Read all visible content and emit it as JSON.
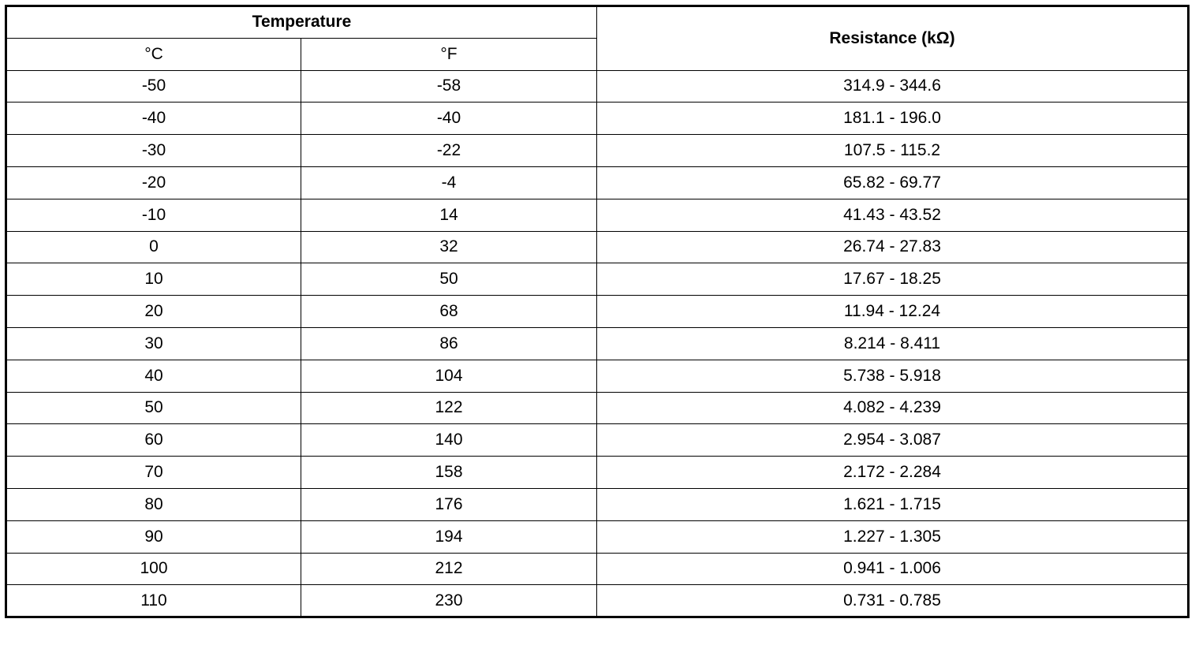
{
  "table": {
    "header": {
      "temperature": "Temperature",
      "celsius": "°C",
      "fahrenheit": "°F",
      "resistance": "Resistance (kΩ)"
    },
    "rows": [
      {
        "c": "-50",
        "f": "-58",
        "r": "314.9 - 344.6"
      },
      {
        "c": "-40",
        "f": "-40",
        "r": "181.1 - 196.0"
      },
      {
        "c": "-30",
        "f": "-22",
        "r": "107.5 - 115.2"
      },
      {
        "c": "-20",
        "f": "-4",
        "r": "65.82 - 69.77"
      },
      {
        "c": "-10",
        "f": "14",
        "r": "41.43 - 43.52"
      },
      {
        "c": "0",
        "f": "32",
        "r": "26.74 - 27.83"
      },
      {
        "c": "10",
        "f": "50",
        "r": "17.67 - 18.25"
      },
      {
        "c": "20",
        "f": "68",
        "r": "11.94 - 12.24"
      },
      {
        "c": "30",
        "f": "86",
        "r": "8.214 - 8.411"
      },
      {
        "c": "40",
        "f": "104",
        "r": "5.738 - 5.918"
      },
      {
        "c": "50",
        "f": "122",
        "r": "4.082 - 4.239"
      },
      {
        "c": "60",
        "f": "140",
        "r": "2.954 - 3.087"
      },
      {
        "c": "70",
        "f": "158",
        "r": "2.172 - 2.284"
      },
      {
        "c": "80",
        "f": "176",
        "r": "1.621 - 1.715"
      },
      {
        "c": "90",
        "f": "194",
        "r": "1.227 - 1.305"
      },
      {
        "c": "100",
        "f": "212",
        "r": "0.941 - 1.006"
      },
      {
        "c": "110",
        "f": "230",
        "r": "0.731 - 0.785"
      }
    ]
  }
}
